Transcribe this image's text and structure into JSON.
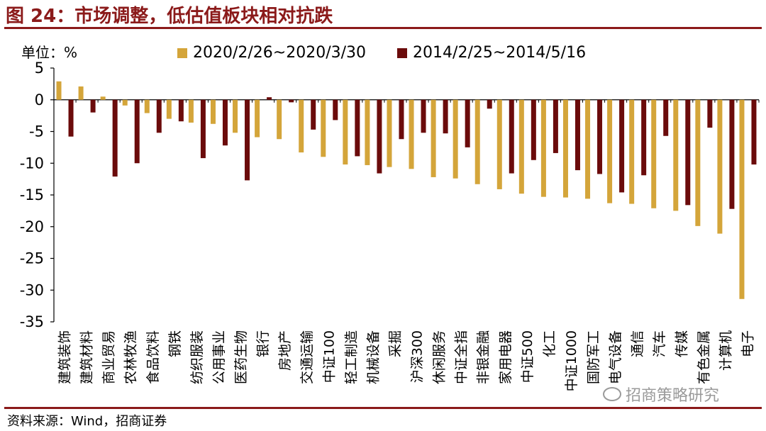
{
  "figure": {
    "title": "图 24：市场调整，低估值板块相对抗跌",
    "unit_label": "单位：%",
    "source": "资料来源：Wind，招商证券",
    "watermark": "招商策略研究"
  },
  "chart_data": {
    "type": "bar",
    "title": "",
    "xlabel": "",
    "ylabel": "",
    "ylim": [
      -35,
      5
    ],
    "yticks": [
      5,
      0,
      -5,
      -10,
      -15,
      -20,
      -25,
      -30,
      -35
    ],
    "grid": false,
    "legend_position": "top",
    "categories": [
      "建筑装饰",
      "建筑材料",
      "商业贸易",
      "农林牧渔",
      "食品饮料",
      "钢铁",
      "纺织服装",
      "公用事业",
      "医药生物",
      "银行",
      "房地产",
      "交通运输",
      "中证100",
      "轻工制造",
      "机械设备",
      "采掘",
      "沪深300",
      "休闲服务",
      "中证全指",
      "非银金融",
      "家用电器",
      "中证500",
      "化工",
      "中证1000",
      "国防军工",
      "电气设备",
      "通信",
      "汽车",
      "传媒",
      "有色金属",
      "计算机",
      "电子"
    ],
    "series": [
      {
        "name": "2020/2/26~2020/3/30",
        "color": "#d4a53a",
        "values": [
          2.9,
          2.1,
          0.5,
          -0.9,
          -2.1,
          -3.0,
          -3.6,
          -3.8,
          -5.2,
          -5.9,
          -6.2,
          -8.3,
          -9.0,
          -10.2,
          -10.3,
          -10.6,
          -10.9,
          -12.2,
          -12.4,
          -13.3,
          -14.1,
          -14.8,
          -15.3,
          -15.4,
          -15.6,
          -16.3,
          -16.4,
          -17.1,
          -17.5,
          -19.9,
          -21.1,
          -31.4
        ]
      },
      {
        "name": "2014/2/25~2014/5/16",
        "color": "#6b0b0b",
        "values": [
          -5.8,
          -2.0,
          -12.1,
          -10.0,
          -5.2,
          -3.4,
          -9.2,
          -7.2,
          -12.7,
          0.4,
          -0.4,
          -4.7,
          -3.2,
          -8.9,
          -11.6,
          -6.2,
          -5.2,
          -5.3,
          -7.5,
          -1.4,
          -11.6,
          -9.5,
          -8.4,
          -11.1,
          -11.7,
          -14.6,
          -11.9,
          -5.7,
          -16.6,
          -4.4,
          -17.2,
          -10.2
        ]
      }
    ]
  }
}
